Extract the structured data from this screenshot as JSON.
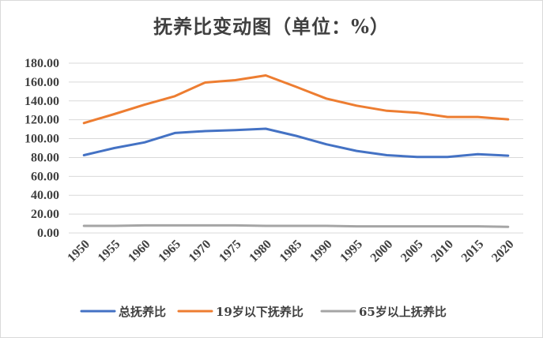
{
  "chart_data": {
    "type": "line",
    "title": "抚养比变动图（单位：%）",
    "xlabel": "",
    "ylabel": "",
    "x": [
      "1950",
      "1955",
      "1960",
      "1965",
      "1970",
      "1975",
      "1980",
      "1985",
      "1990",
      "1995",
      "2000",
      "2005",
      "2010",
      "2015",
      "2020"
    ],
    "yticks": [
      "0.00",
      "20.00",
      "40.00",
      "60.00",
      "80.00",
      "100.00",
      "120.00",
      "140.00",
      "160.00",
      "180.00"
    ],
    "ylim": [
      0,
      180
    ],
    "grid": true,
    "legend_position": "bottom",
    "series": [
      {
        "name": "总抚养比",
        "color": "#4472c4",
        "values": [
          82.5,
          90,
          96,
          106,
          108,
          109,
          110.5,
          103,
          94,
          87,
          82.5,
          80.5,
          80.5,
          83.5,
          82
        ]
      },
      {
        "name": "19岁以下抚养比",
        "color": "#ed7d31",
        "values": [
          116.5,
          126,
          136,
          145,
          159.5,
          162,
          167,
          155,
          142.5,
          135,
          129.5,
          127.5,
          123,
          123,
          120.5
        ]
      },
      {
        "name": "65岁以上抚养比",
        "color": "#a5a5a5",
        "values": [
          7.5,
          7.5,
          8,
          8,
          8,
          8,
          7.5,
          7.5,
          7.5,
          7,
          7,
          7,
          7,
          7,
          6.5
        ]
      }
    ]
  }
}
